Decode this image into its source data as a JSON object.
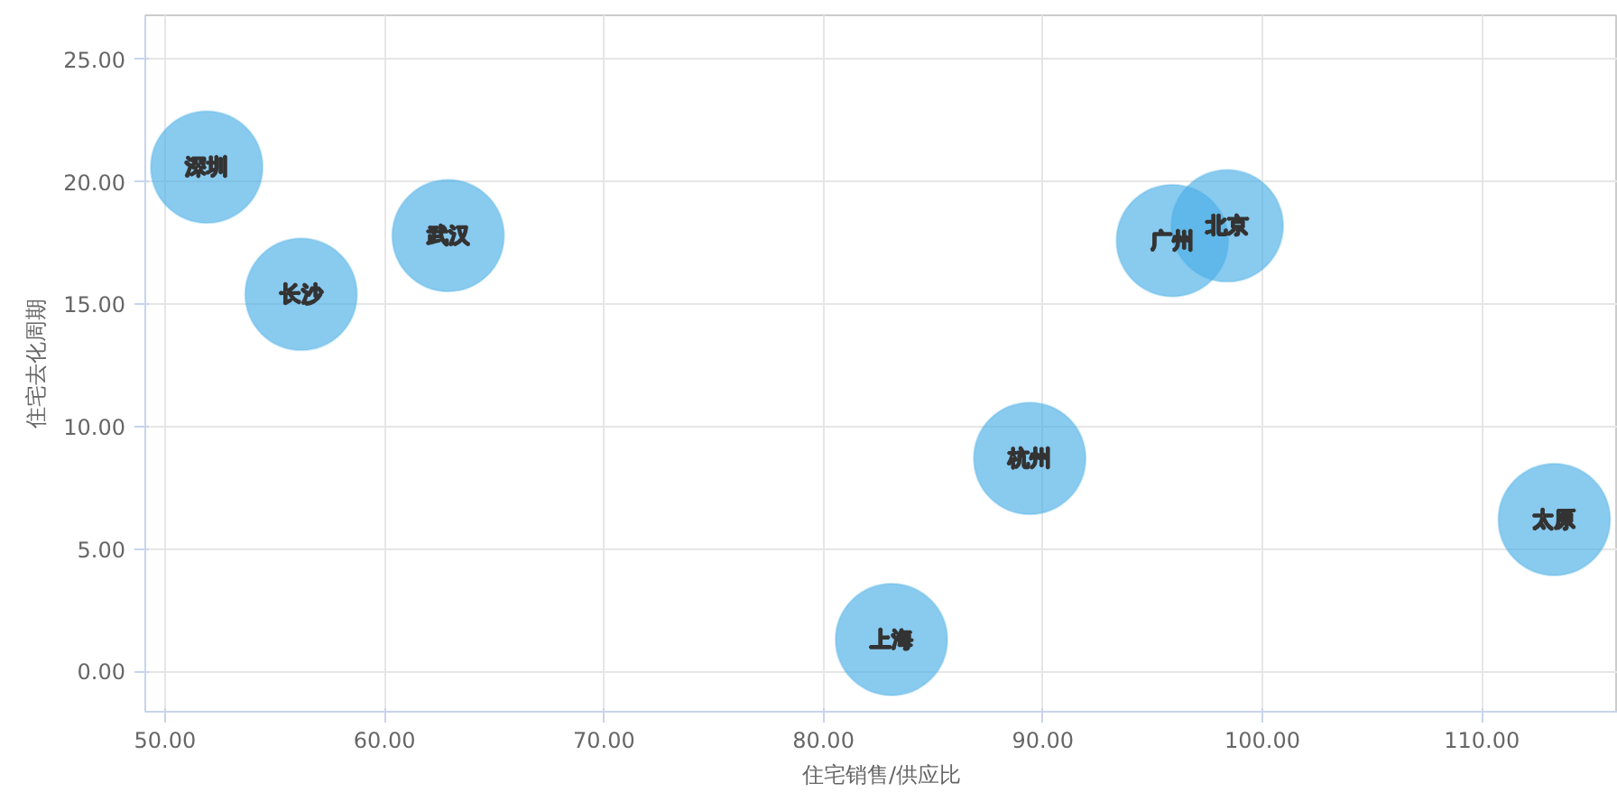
{
  "chart_data": {
    "type": "bubble",
    "xlabel": "住宅销售/供应比",
    "ylabel": "住宅去化周期",
    "x": [
      51.9,
      56.2,
      62.9,
      83.1,
      89.4,
      95.9,
      98.4,
      113.3
    ],
    "values": [
      20.6,
      15.4,
      17.8,
      1.3,
      8.7,
      17.6,
      18.2,
      6.2
    ],
    "sizes": [
      1,
      1,
      1,
      1,
      1,
      1,
      1,
      1
    ],
    "color": "#4aaee6",
    "annotations": [
      {
        "text": "深圳",
        "x": 51.9,
        "y": 20.6
      },
      {
        "text": "长沙",
        "x": 56.2,
        "y": 15.4
      },
      {
        "text": "武汉",
        "x": 62.9,
        "y": 17.8
      },
      {
        "text": "上海",
        "x": 83.1,
        "y": 1.3
      },
      {
        "text": "杭州",
        "x": 89.4,
        "y": 8.7
      },
      {
        "text": "广州",
        "x": 95.9,
        "y": 17.6
      },
      {
        "text": "北京",
        "x": 98.4,
        "y": 18.2
      },
      {
        "text": "太原",
        "x": 113.3,
        "y": 6.2
      }
    ],
    "xlim": [
      49.1,
      116.2
    ],
    "ylim": [
      -1.65,
      26.8
    ],
    "xticks": [
      {
        "value": 50,
        "label": "50.00"
      },
      {
        "value": 60,
        "label": "60.00"
      },
      {
        "value": 70,
        "label": "70.00"
      },
      {
        "value": 80,
        "label": "80.00"
      },
      {
        "value": 90,
        "label": "90.00"
      },
      {
        "value": 100,
        "label": "100.00"
      },
      {
        "value": 110,
        "label": "110.00"
      }
    ],
    "yticks": [
      {
        "value": 0,
        "label": "0.00"
      },
      {
        "value": 5,
        "label": "5.00"
      },
      {
        "value": 10,
        "label": "10.00"
      },
      {
        "value": 15,
        "label": "15.00"
      },
      {
        "value": 20,
        "label": "20.00"
      },
      {
        "value": 25,
        "label": "25.00"
      }
    ],
    "grid": true
  }
}
